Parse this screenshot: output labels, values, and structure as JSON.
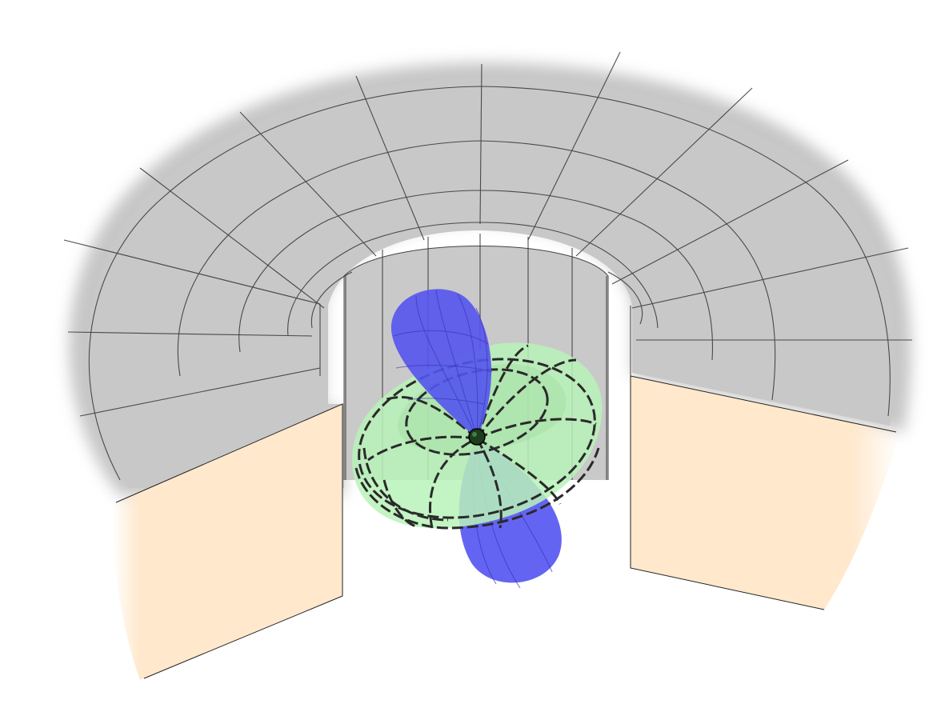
{
  "scene": {
    "subject": "orbital-lobes-in-cylindrical-chamber",
    "colors": {
      "background": "#ffffff",
      "wall": "#c4c4c4",
      "wall_shadow": "#b2b2b2",
      "grid_line": "#333333",
      "panel": "#ffe8cc",
      "lobe": "#5a5af0",
      "lobe_stroke": "#3a3ad0",
      "torus": "#b8f0b8",
      "torus_stroke": "#2a2a2a",
      "nucleus": "#1a3a1a"
    },
    "objects": [
      "cylindrical-chamber-wall",
      "left-side-panel",
      "right-side-panel",
      "upper-lobe",
      "lower-lobe",
      "torus-ring",
      "nucleus-point"
    ]
  }
}
